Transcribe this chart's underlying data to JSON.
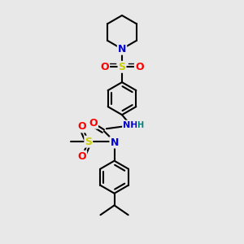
{
  "bg_color": "#e8e8e8",
  "bond_color": "#000000",
  "bond_width": 1.5,
  "atom_colors": {
    "N": "#0000cc",
    "O": "#ff0000",
    "S": "#cccc00",
    "H": "#008080"
  },
  "font_size_atom": 9,
  "font_size_nh": 8
}
